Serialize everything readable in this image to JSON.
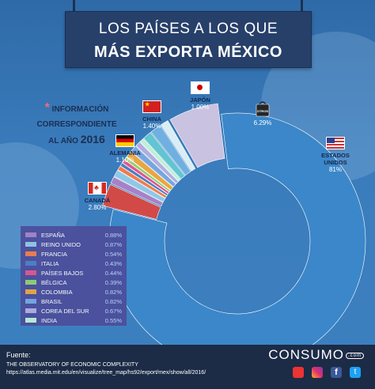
{
  "title": {
    "line1": "LOS PAÍSES A LOS QUE",
    "line2": "MÁS EXPORTA MÉXICO"
  },
  "info": {
    "line1": "INFORMACIÓN",
    "line2": "CORRESPONDIENTE",
    "line3": "AL AÑO",
    "year": "2016"
  },
  "colors": {
    "usa": "#3b87c9",
    "others": "#c9c2e1",
    "japan": "#d8eef4",
    "china": "#6fb0e0",
    "germany": "#62c5d1",
    "canada": "#d24a47"
  },
  "chart_data": {
    "type": "pie",
    "donut": true,
    "slices": [
      {
        "name": "ESTADOS UNIDOS",
        "value": 81,
        "label": "81%"
      },
      {
        "name": "OTROS",
        "value": 6.29,
        "label": "6.29%"
      },
      {
        "name": "JAPÓN",
        "value": 1.0,
        "label": "1.00%"
      },
      {
        "name": "CHINA",
        "value": 1.4,
        "label": "1.40%"
      },
      {
        "name": "ALEMANIA",
        "value": 1.1,
        "label": "1.10%"
      },
      {
        "name": "CANADÁ",
        "value": 2.8,
        "label": "2.80%"
      }
    ],
    "legend": [
      {
        "name": "ESPAÑA",
        "value": "0.88%",
        "color": "#a582c8"
      },
      {
        "name": "REINO UNIDO",
        "value": "0.87%",
        "color": "#8fc7e6"
      },
      {
        "name": "FRANCIA",
        "value": "0.54%",
        "color": "#f07c4c"
      },
      {
        "name": "ITALIA",
        "value": "0.43%",
        "color": "#4e7ec4"
      },
      {
        "name": "PAÍSES BAJOS",
        "value": "0.44%",
        "color": "#e1558f"
      },
      {
        "name": "BÉLGICA",
        "value": "0.39%",
        "color": "#8fd16e"
      },
      {
        "name": "COLOMBIA",
        "value": "0.82%",
        "color": "#e9a642"
      },
      {
        "name": "BRASIL",
        "value": "0.82%",
        "color": "#77a6e0"
      },
      {
        "name": "COREA DEL SUR",
        "value": "0.67%",
        "color": "#b0aee0"
      },
      {
        "name": "INDIA",
        "value": "0.55%",
        "color": "#bdf0d5"
      }
    ]
  },
  "footer": {
    "source_label": "Fuente:",
    "source_name": "THE OBSERVATORY OF ECONOMIC COMPLEXITY",
    "source_url": "https://atlas.media.mit.edu/en/visualize/tree_map/hs92/export/mex/show/all/2016/",
    "brand": "CONSUMO",
    "brand_domain": ".com"
  }
}
